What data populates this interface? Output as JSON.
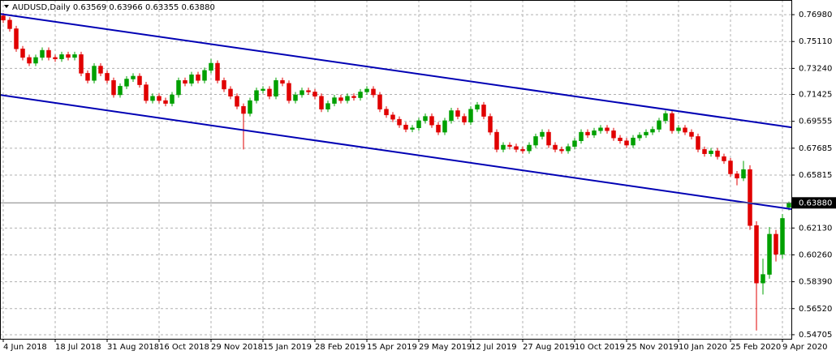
{
  "chart_data": {
    "type": "candlestick",
    "title": "AUDUSD,Daily  0.63569 0.63966 0.63355 0.63880",
    "categories": [
      "4 Jun 2018",
      null,
      null,
      null,
      null,
      null,
      null,
      null,
      "18 Jul 2018",
      null,
      null,
      null,
      null,
      null,
      null,
      null,
      "31 Aug 2018",
      null,
      null,
      null,
      null,
      null,
      null,
      null,
      "16 Oct 2018",
      null,
      null,
      null,
      null,
      null,
      null,
      null,
      "29 Nov 2018",
      null,
      null,
      null,
      null,
      null,
      null,
      null,
      "15 Jan 2019",
      null,
      null,
      null,
      null,
      null,
      null,
      null,
      "28 Feb 2019",
      null,
      null,
      null,
      null,
      null,
      null,
      null,
      "15 Apr 2019",
      null,
      null,
      null,
      null,
      null,
      null,
      null,
      "29 May 2019",
      null,
      null,
      null,
      null,
      null,
      null,
      null,
      "12 Jul 2019",
      null,
      null,
      null,
      null,
      null,
      null,
      null,
      "27 Aug 2019",
      null,
      null,
      null,
      null,
      null,
      null,
      null,
      "10 Oct 2019",
      null,
      null,
      null,
      null,
      null,
      null,
      null,
      "25 Nov 2019",
      null,
      null,
      null,
      null,
      null,
      null,
      null,
      "10 Jan 2020",
      null,
      null,
      null,
      null,
      null,
      null,
      null,
      "25 Feb 2020",
      null,
      null,
      null,
      null,
      null,
      null,
      null,
      "9 Apr 2020",
      null
    ],
    "open": [
      0.769,
      0.766,
      0.76,
      0.746,
      0.74,
      0.736,
      0.74,
      0.745,
      0.74,
      0.739,
      0.742,
      0.74,
      0.742,
      0.729,
      0.724,
      0.734,
      0.729,
      0.724,
      0.714,
      0.72,
      0.725,
      0.727,
      0.721,
      0.71,
      0.713,
      0.71,
      0.708,
      0.714,
      0.724,
      0.722,
      0.728,
      0.724,
      0.731,
      0.736,
      0.724,
      0.718,
      0.713,
      0.706,
      0.701,
      0.71,
      0.717,
      0.718,
      0.713,
      0.724,
      0.722,
      0.71,
      0.714,
      0.717,
      0.716,
      0.713,
      0.704,
      0.708,
      0.712,
      0.71,
      0.713,
      0.712,
      0.716,
      0.718,
      0.714,
      0.704,
      0.7,
      0.697,
      0.693,
      0.69,
      0.691,
      0.696,
      0.699,
      0.693,
      0.688,
      0.696,
      0.703,
      0.699,
      0.695,
      0.704,
      0.707,
      0.699,
      0.688,
      0.676,
      0.679,
      0.678,
      0.676,
      0.675,
      0.679,
      0.685,
      0.688,
      0.679,
      0.676,
      0.675,
      0.678,
      0.682,
      0.688,
      0.686,
      0.689,
      0.691,
      0.689,
      0.684,
      0.682,
      0.679,
      0.684,
      0.686,
      0.688,
      0.69,
      0.696,
      0.701,
      0.689,
      0.691,
      0.688,
      0.685,
      0.676,
      0.673,
      0.675,
      0.671,
      0.668,
      0.659,
      0.656,
      0.662,
      0.623,
      0.583,
      0.589,
      0.617,
      0.603,
      0.6357
    ],
    "high": [
      0.771,
      0.768,
      0.762,
      0.748,
      0.742,
      0.742,
      0.747,
      0.747,
      0.742,
      0.744,
      0.744,
      0.744,
      0.744,
      0.731,
      0.736,
      0.736,
      0.731,
      0.726,
      0.722,
      0.727,
      0.729,
      0.729,
      0.723,
      0.715,
      0.715,
      0.712,
      0.716,
      0.726,
      0.726,
      0.73,
      0.73,
      0.733,
      0.739,
      0.738,
      0.726,
      0.72,
      0.715,
      0.708,
      0.712,
      0.719,
      0.72,
      0.72,
      0.726,
      0.726,
      0.724,
      0.716,
      0.719,
      0.719,
      0.718,
      0.715,
      0.71,
      0.714,
      0.714,
      0.715,
      0.715,
      0.718,
      0.72,
      0.72,
      0.716,
      0.706,
      0.702,
      0.699,
      0.695,
      0.693,
      0.698,
      0.701,
      0.701,
      0.695,
      0.698,
      0.705,
      0.705,
      0.701,
      0.706,
      0.709,
      0.709,
      0.701,
      0.69,
      0.681,
      0.681,
      0.68,
      0.678,
      0.681,
      0.687,
      0.69,
      0.69,
      0.681,
      0.678,
      0.68,
      0.684,
      0.69,
      0.69,
      0.691,
      0.693,
      0.693,
      0.691,
      0.686,
      0.684,
      0.686,
      0.688,
      0.69,
      0.692,
      0.698,
      0.703,
      0.703,
      0.693,
      0.693,
      0.69,
      0.687,
      0.678,
      0.677,
      0.677,
      0.673,
      0.67,
      0.661,
      0.668,
      0.665,
      0.626,
      0.6,
      0.622,
      0.62,
      0.631,
      0.6397
    ],
    "low": [
      0.764,
      0.758,
      0.744,
      0.738,
      0.734,
      0.734,
      0.738,
      0.738,
      0.737,
      0.737,
      0.738,
      0.738,
      0.727,
      0.722,
      0.722,
      0.727,
      0.722,
      0.712,
      0.712,
      0.718,
      0.723,
      0.719,
      0.708,
      0.708,
      0.708,
      0.706,
      0.706,
      0.712,
      0.72,
      0.72,
      0.722,
      0.722,
      0.729,
      0.722,
      0.716,
      0.711,
      0.704,
      0.676,
      0.699,
      0.708,
      0.715,
      0.711,
      0.711,
      0.72,
      0.708,
      0.708,
      0.712,
      0.714,
      0.711,
      0.702,
      0.702,
      0.706,
      0.708,
      0.708,
      0.71,
      0.71,
      0.714,
      0.712,
      0.702,
      0.698,
      0.695,
      0.691,
      0.688,
      0.688,
      0.689,
      0.694,
      0.691,
      0.686,
      0.686,
      0.694,
      0.697,
      0.693,
      0.693,
      0.702,
      0.697,
      0.686,
      0.674,
      0.674,
      0.676,
      0.674,
      0.673,
      0.673,
      0.677,
      0.683,
      0.677,
      0.674,
      0.673,
      0.673,
      0.676,
      0.68,
      0.684,
      0.684,
      0.687,
      0.687,
      0.682,
      0.68,
      0.677,
      0.677,
      0.682,
      0.684,
      0.686,
      0.688,
      0.694,
      0.687,
      0.687,
      0.686,
      0.683,
      0.674,
      0.671,
      0.671,
      0.669,
      0.666,
      0.657,
      0.651,
      0.654,
      0.62,
      0.55,
      0.575,
      0.586,
      0.598,
      0.6,
      0.6336
    ],
    "close": [
      0.766,
      0.76,
      0.746,
      0.74,
      0.736,
      0.74,
      0.745,
      0.74,
      0.739,
      0.742,
      0.74,
      0.742,
      0.729,
      0.724,
      0.734,
      0.729,
      0.724,
      0.714,
      0.72,
      0.725,
      0.727,
      0.721,
      0.71,
      0.713,
      0.71,
      0.708,
      0.714,
      0.724,
      0.722,
      0.728,
      0.724,
      0.731,
      0.736,
      0.724,
      0.718,
      0.713,
      0.706,
      0.701,
      0.71,
      0.717,
      0.718,
      0.713,
      0.724,
      0.722,
      0.71,
      0.714,
      0.717,
      0.716,
      0.713,
      0.704,
      0.708,
      0.712,
      0.71,
      0.713,
      0.712,
      0.716,
      0.718,
      0.714,
      0.704,
      0.7,
      0.697,
      0.693,
      0.69,
      0.691,
      0.696,
      0.699,
      0.693,
      0.688,
      0.696,
      0.703,
      0.699,
      0.695,
      0.704,
      0.707,
      0.699,
      0.688,
      0.676,
      0.679,
      0.678,
      0.676,
      0.675,
      0.679,
      0.685,
      0.688,
      0.679,
      0.676,
      0.675,
      0.678,
      0.682,
      0.688,
      0.686,
      0.689,
      0.691,
      0.689,
      0.684,
      0.682,
      0.679,
      0.684,
      0.686,
      0.688,
      0.69,
      0.696,
      0.701,
      0.689,
      0.691,
      0.688,
      0.685,
      0.676,
      0.673,
      0.675,
      0.671,
      0.668,
      0.659,
      0.656,
      0.662,
      0.623,
      0.583,
      0.589,
      0.617,
      0.603,
      0.628,
      0.6388
    ],
    "up_color": "#00a000",
    "down_color": "#e00000",
    "ylim": [
      0.5442,
      0.78
    ],
    "yticks": [
      {
        "value": 0.7698,
        "label": "0.76980"
      },
      {
        "value": 0.7511,
        "label": "0.75110"
      },
      {
        "value": 0.7324,
        "label": "0.73240"
      },
      {
        "value": 0.71425,
        "label": "0.71425"
      },
      {
        "value": 0.69555,
        "label": "0.69555"
      },
      {
        "value": 0.67685,
        "label": "0.67685"
      },
      {
        "value": 0.65815,
        "label": "0.65815"
      },
      {
        "value": 0.6213,
        "label": "0.62130"
      },
      {
        "value": 0.6026,
        "label": "0.60260"
      },
      {
        "value": 0.5839,
        "label": "0.58390"
      },
      {
        "value": 0.5652,
        "label": "0.56520"
      },
      {
        "value": 0.54705,
        "label": "0.54705"
      }
    ],
    "last_price": {
      "value": 0.6388,
      "label": "0.63880"
    },
    "trendlines": [
      {
        "color": "#0000b4",
        "values": [
          0.77,
          0.6916
        ]
      },
      {
        "color": "#0000b4",
        "values": [
          0.7136,
          0.6347
        ]
      }
    ],
    "grid": true
  }
}
